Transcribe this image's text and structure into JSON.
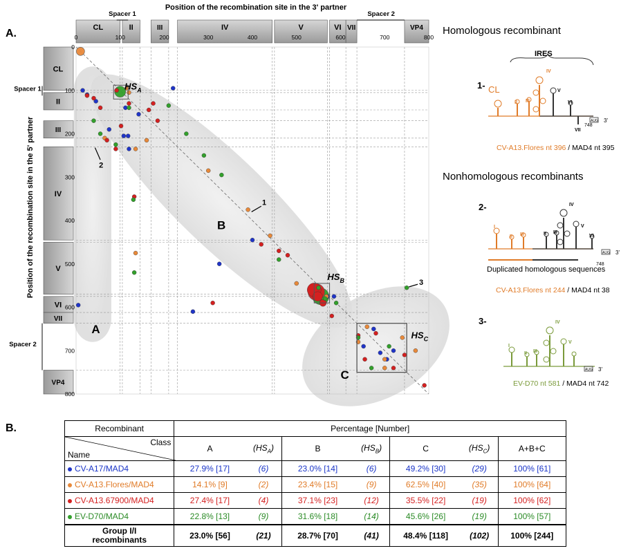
{
  "panel_a_label": "A.",
  "panel_b_label": "B.",
  "colors": {
    "blue": "#2035c8",
    "orange": "#e8893a",
    "red": "#d42020",
    "green": "#33a02c",
    "gray": "#8c8c8c"
  },
  "chart_data": {
    "type": "scatter",
    "title": "",
    "xlabel": "Position of the recombination site in the 3' partner",
    "ylabel": "Position of the recombination site in the 5' partner",
    "xlim": [
      0,
      800
    ],
    "ylim": [
      800,
      0
    ],
    "x_ticks": [
      "0",
      "100",
      "200",
      "300",
      "400",
      "500",
      "600",
      "700",
      "800"
    ],
    "y_ticks": [
      "0",
      "100",
      "200",
      "300",
      "400",
      "500",
      "600",
      "700",
      "800"
    ],
    "regions": [
      {
        "label": "CL",
        "start": 0,
        "end": 100
      },
      {
        "label": "II",
        "start": 105,
        "end": 145
      },
      {
        "label": "III",
        "start": 170,
        "end": 210
      },
      {
        "label": "IV",
        "start": 230,
        "end": 445
      },
      {
        "label": "V",
        "start": 450,
        "end": 570
      },
      {
        "label": "VI",
        "start": 575,
        "end": 612
      },
      {
        "label": "VII",
        "start": 612,
        "end": 637
      },
      {
        "label": "VP4",
        "start": 745,
        "end": 800
      }
    ],
    "spacer_labels": {
      "spacer1": "Spacer 1",
      "spacer2": "Spacer 2"
    },
    "group_labels": {
      "A": "A",
      "B": "B",
      "C": "C"
    },
    "hotspot_labels": {
      "HSA_main": "HS",
      "HSA_sub": "A",
      "HSB_main": "HS",
      "HSB_sub": "B",
      "HSC_main": "HS",
      "HSC_sub": "C"
    },
    "arrow_labels": [
      "1",
      "2",
      "3"
    ],
    "series": [
      {
        "color": "blue",
        "x": [
          5,
          15,
          25,
          45,
          112,
          120,
          75,
          108,
          118,
          142,
          220,
          265,
          325,
          400,
          570,
          585,
          652,
          675,
          690,
          705,
          720
        ],
        "y": [
          595,
          100,
          110,
          125,
          140,
          235,
          190,
          205,
          205,
          155,
          95,
          610,
          500,
          445,
          575,
          575,
          690,
          650,
          705,
          720,
          700
        ]
      },
      {
        "color": "orange",
        "x": [
          115,
          65,
          120,
          135,
          135,
          160,
          300,
          390,
          440,
          500,
          552,
          568,
          640,
          660,
          700,
          740,
          770,
          700
        ],
        "y": [
          95,
          210,
          105,
          235,
          475,
          215,
          285,
          375,
          435,
          545,
          575,
          575,
          680,
          645,
          720,
          670,
          700,
          740
        ]
      },
      {
        "color": "red",
        "x": [
          25,
          40,
          55,
          70,
          90,
          92,
          102,
          120,
          132,
          175,
          165,
          185,
          310,
          420,
          460,
          480,
          540,
          548,
          560,
          580,
          640,
          655,
          680,
          720,
          745,
          790
        ],
        "y": [
          112,
          118,
          140,
          215,
          235,
          100,
          182,
          130,
          345,
          130,
          145,
          170,
          590,
          455,
          470,
          480,
          560,
          575,
          590,
          620,
          665,
          720,
          660,
          740,
          710,
          780
        ],
        "r": [
          3,
          3,
          3,
          3,
          3,
          3,
          3,
          3,
          3,
          3,
          3,
          3,
          3,
          3,
          3,
          3,
          10,
          7,
          5,
          3,
          3,
          3,
          3,
          3,
          3,
          3
        ]
      },
      {
        "color": "green",
        "x": [
          40,
          55,
          90,
          120,
          130,
          132,
          210,
          250,
          290,
          330,
          460,
          550,
          565,
          590,
          640,
          670,
          710,
          750
        ],
        "y": [
          170,
          200,
          225,
          140,
          352,
          520,
          135,
          200,
          250,
          295,
          490,
          555,
          580,
          590,
          670,
          740,
          690,
          555
        ]
      }
    ],
    "big_markers": [
      {
        "color": "orange",
        "x": 10,
        "y": 10
      },
      {
        "color": "green",
        "x": 100,
        "y": 103
      },
      {
        "color": "green",
        "x": 555,
        "y": 575
      },
      {
        "color": "red",
        "x": 545,
        "y": 565
      }
    ]
  },
  "right_panel": {
    "homologous_title": "Homologous recombinant",
    "nonhomologous_title": "Nonhomologous recombinants",
    "num1": "1-",
    "num2": "2-",
    "num3": "3-",
    "ires": "IRES",
    "cl": "CL",
    "aug": "AUG",
    "three_prime": "3'",
    "n748": "748",
    "dup_label": "Duplicated homologous sequences",
    "cap1_a": "CV-A13.Flores nt 396",
    "cap1_b": " / MAD4 nt 395",
    "cap2_a": "CV-A13.Flores nt 244",
    "cap2_b": " / MAD4 nt 38",
    "cap3_a": "EV-D70 nt 581",
    "cap3_b": " / MAD4 nt 742",
    "domains": [
      "II",
      "III",
      "IV",
      "V",
      "VI",
      "VII",
      "I"
    ]
  },
  "table": {
    "header": {
      "recombinant": "Recombinant",
      "percentage": "Percentage [Number]",
      "class": "Class",
      "name": "Name",
      "cols": [
        "A",
        "(HS",
        "A",
        ")",
        "B",
        "(HS",
        "B",
        ")",
        "C",
        "(HS",
        "C",
        ")",
        "A+B+C"
      ]
    },
    "rows": [
      {
        "name": "CV-A17/MAD4",
        "color": "blue",
        "a": "27.9% [17]",
        "hsa": "(6)",
        "b": "23.0% [14]",
        "hsb": "(6)",
        "c": "49.2% [30]",
        "hsc": "(29)",
        "total": "100% [61]"
      },
      {
        "name": "CV-A13.Flores/MAD4",
        "color": "orange",
        "a": "14.1% [9]",
        "hsa": "(2)",
        "b": "23.4% [15]",
        "hsb": "(9)",
        "c": "62.5% [40]",
        "hsc": "(35)",
        "total": "100% [64]"
      },
      {
        "name": "CV-A13.67900/MAD4",
        "color": "red",
        "a": "27.4% [17]",
        "hsa": "(4)",
        "b": "37.1% [23]",
        "hsb": "(12)",
        "c": "35.5% [22]",
        "hsc": "(19)",
        "total": "100% [62]"
      },
      {
        "name": "EV-D70/MAD4",
        "color": "green",
        "a": "22.8% [13]",
        "hsa": "(9)",
        "b": "31.6% [18]",
        "hsb": "(14)",
        "c": "45.6% [26]",
        "hsc": "(19)",
        "total": "100% [57]"
      }
    ],
    "total_row": {
      "name_line1": "Group I/I",
      "name_line2": "recombinants",
      "a": "23.0% [56]",
      "hsa": "(21)",
      "b": "28.7% [70]",
      "hsb": "(41)",
      "c": "48.4% [118]",
      "hsc": "(102)",
      "total": "100% [244]"
    }
  }
}
